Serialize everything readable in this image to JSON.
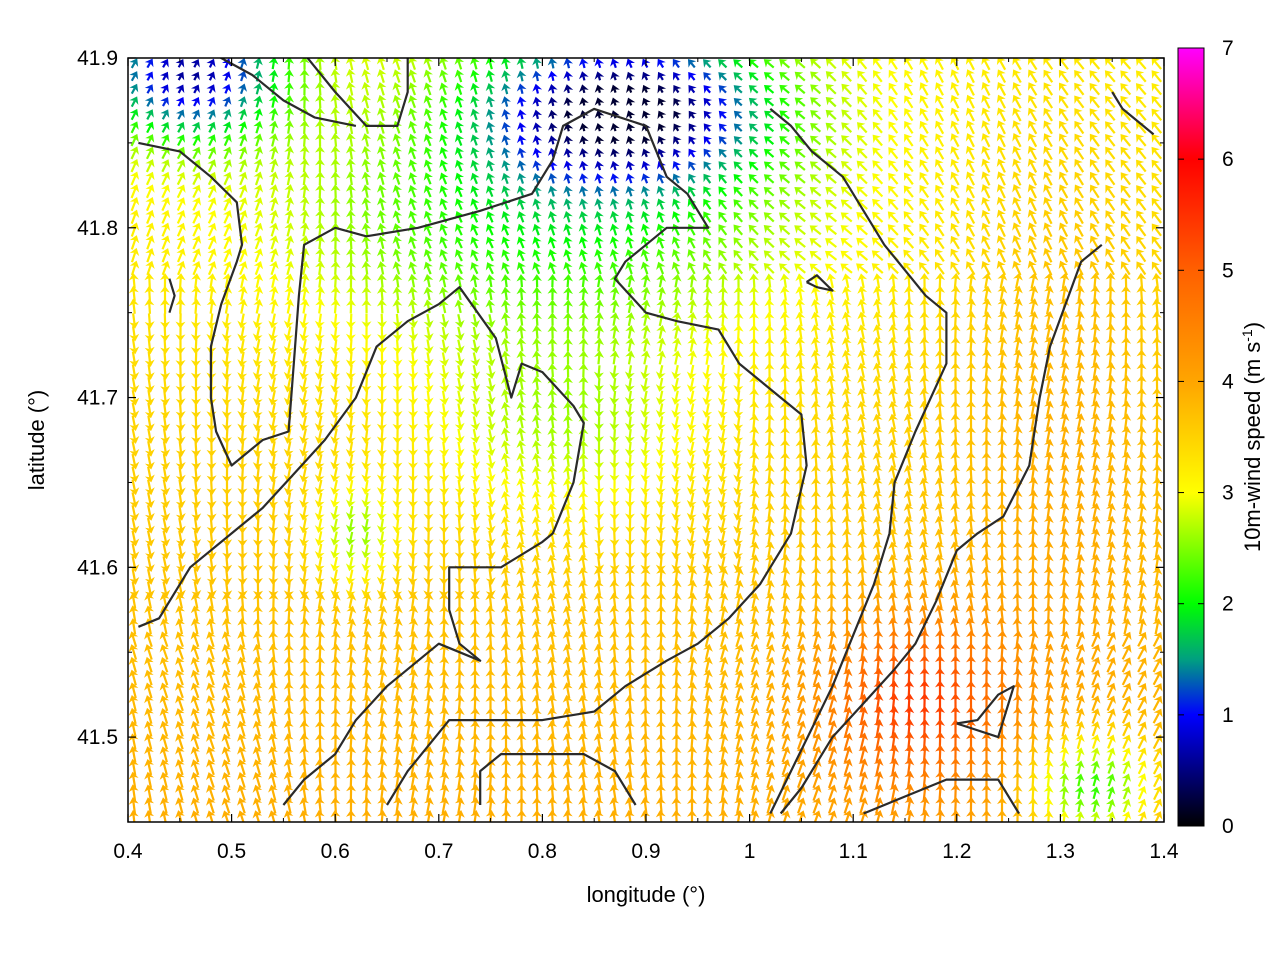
{
  "chart_data": {
    "type": "vector-field",
    "xlabel": "longitude (°)",
    "ylabel": "latitude (°)",
    "xlim": [
      0.4,
      1.4
    ],
    "ylim": [
      41.45,
      41.9
    ],
    "x_ticks": [
      "0.4",
      "0.5",
      "0.6",
      "0.7",
      "0.8",
      "0.9",
      "1",
      "1.1",
      "1.2",
      "1.3",
      "1.4"
    ],
    "y_ticks": [
      "41.5",
      "41.6",
      "41.7",
      "41.8",
      "41.9"
    ],
    "colorbar": {
      "label": "10m-wind speed (m s",
      "label_sup": "-1",
      "label_end": ")",
      "range": [
        0,
        7
      ],
      "ticks": [
        "0",
        "1",
        "2",
        "3",
        "4",
        "5",
        "6",
        "7"
      ],
      "stops": [
        {
          "v": 0,
          "color": "#000000"
        },
        {
          "v": 1,
          "color": "#0000ff"
        },
        {
          "v": 1.5,
          "color": "#00a080"
        },
        {
          "v": 2,
          "color": "#00ff00"
        },
        {
          "v": 3,
          "color": "#ffff00"
        },
        {
          "v": 4,
          "color": "#ffa500"
        },
        {
          "v": 5,
          "color": "#ff6000"
        },
        {
          "v": 6,
          "color": "#ff0000"
        },
        {
          "v": 7,
          "color": "#ff00ff"
        }
      ]
    },
    "grid": false,
    "contours": [
      [
        [
          0.41,
          41.85
        ],
        [
          0.45,
          41.845
        ],
        [
          0.48,
          41.83
        ],
        [
          0.505,
          41.815
        ],
        [
          0.51,
          41.79
        ],
        [
          0.505,
          41.78
        ],
        [
          0.49,
          41.755
        ],
        [
          0.48,
          41.73
        ],
        [
          0.48,
          41.7
        ],
        [
          0.485,
          41.68
        ],
        [
          0.5,
          41.66
        ],
        [
          0.53,
          41.675
        ],
        [
          0.555,
          41.68
        ],
        [
          0.56,
          41.72
        ],
        [
          0.565,
          41.76
        ],
        [
          0.57,
          41.79
        ],
        [
          0.6,
          41.8
        ],
        [
          0.63,
          41.795
        ],
        [
          0.68,
          41.8
        ],
        [
          0.74,
          41.81
        ],
        [
          0.79,
          41.82
        ],
        [
          0.81,
          41.84
        ],
        [
          0.82,
          41.86
        ],
        [
          0.85,
          41.87
        ],
        [
          0.9,
          41.86
        ],
        [
          0.92,
          41.83
        ],
        [
          0.94,
          41.82
        ],
        [
          0.96,
          41.8
        ],
        [
          0.92,
          41.8
        ],
        [
          0.9,
          41.79
        ],
        [
          0.88,
          41.78
        ],
        [
          0.87,
          41.77
        ],
        [
          0.9,
          41.75
        ],
        [
          0.93,
          41.745
        ],
        [
          0.97,
          41.74
        ],
        [
          0.99,
          41.72
        ],
        [
          1.03,
          41.7
        ],
        [
          1.05,
          41.69
        ],
        [
          1.055,
          41.66
        ],
        [
          1.04,
          41.62
        ],
        [
          1.01,
          41.59
        ],
        [
          0.98,
          41.57
        ],
        [
          0.95,
          41.555
        ],
        [
          0.92,
          41.545
        ],
        [
          0.88,
          41.53
        ],
        [
          0.85,
          41.515
        ],
        [
          0.8,
          41.51
        ],
        [
          0.75,
          41.51
        ],
        [
          0.71,
          41.51
        ],
        [
          0.67,
          41.48
        ],
        [
          0.65,
          41.46
        ]
      ],
      [
        [
          0.41,
          41.565
        ],
        [
          0.43,
          41.57
        ],
        [
          0.46,
          41.6
        ],
        [
          0.5,
          41.62
        ],
        [
          0.53,
          41.635
        ],
        [
          0.56,
          41.655
        ],
        [
          0.59,
          41.675
        ],
        [
          0.62,
          41.7
        ],
        [
          0.64,
          41.73
        ],
        [
          0.67,
          41.745
        ],
        [
          0.7,
          41.755
        ],
        [
          0.72,
          41.765
        ],
        [
          0.755,
          41.735
        ],
        [
          0.77,
          41.7
        ],
        [
          0.78,
          41.72
        ],
        [
          0.8,
          41.715
        ],
        [
          0.83,
          41.695
        ],
        [
          0.84,
          41.685
        ],
        [
          0.83,
          41.65
        ],
        [
          0.81,
          41.62
        ],
        [
          0.8,
          41.615
        ],
        [
          0.76,
          41.6
        ],
        [
          0.71,
          41.6
        ],
        [
          0.71,
          41.575
        ],
        [
          0.72,
          41.555
        ],
        [
          0.74,
          41.545
        ],
        [
          0.7,
          41.555
        ],
        [
          0.68,
          41.545
        ],
        [
          0.65,
          41.53
        ],
        [
          0.62,
          41.51
        ],
        [
          0.6,
          41.49
        ],
        [
          0.57,
          41.475
        ],
        [
          0.55,
          41.46
        ]
      ],
      [
        [
          0.74,
          41.46
        ],
        [
          0.74,
          41.48
        ],
        [
          0.76,
          41.49
        ],
        [
          0.84,
          41.49
        ],
        [
          0.87,
          41.48
        ],
        [
          0.89,
          41.46
        ]
      ],
      [
        [
          0.56,
          41.91
        ],
        [
          0.6,
          41.88
        ],
        [
          0.63,
          41.86
        ],
        [
          0.66,
          41.86
        ],
        [
          0.67,
          41.88
        ],
        [
          0.67,
          41.91
        ]
      ],
      [
        [
          0.46,
          41.93
        ],
        [
          0.47,
          41.91
        ],
        [
          0.49,
          41.9
        ],
        [
          0.52,
          41.89
        ],
        [
          0.55,
          41.875
        ],
        [
          0.58,
          41.865
        ],
        [
          0.62,
          41.86
        ]
      ],
      [
        [
          1.02,
          41.87
        ],
        [
          1.04,
          41.86
        ],
        [
          1.06,
          41.845
        ],
        [
          1.09,
          41.83
        ],
        [
          1.13,
          41.79
        ],
        [
          1.17,
          41.76
        ],
        [
          1.19,
          41.75
        ],
        [
          1.19,
          41.72
        ],
        [
          1.16,
          41.68
        ],
        [
          1.14,
          41.65
        ],
        [
          1.135,
          41.62
        ],
        [
          1.12,
          41.59
        ],
        [
          1.1,
          41.56
        ],
        [
          1.08,
          41.53
        ],
        [
          1.06,
          41.505
        ],
        [
          1.04,
          41.48
        ],
        [
          1.02,
          41.455
        ]
      ],
      [
        [
          1.34,
          41.79
        ],
        [
          1.32,
          41.78
        ],
        [
          1.29,
          41.73
        ],
        [
          1.28,
          41.7
        ],
        [
          1.27,
          41.66
        ],
        [
          1.245,
          41.63
        ],
        [
          1.22,
          41.62
        ],
        [
          1.2,
          41.61
        ],
        [
          1.18,
          41.58
        ],
        [
          1.16,
          41.555
        ],
        [
          1.14,
          41.54
        ],
        [
          1.11,
          41.52
        ],
        [
          1.08,
          41.5
        ],
        [
          1.05,
          41.47
        ],
        [
          1.03,
          41.455
        ]
      ],
      [
        [
          1.11,
          41.455
        ],
        [
          1.15,
          41.465
        ],
        [
          1.19,
          41.475
        ],
        [
          1.24,
          41.475
        ],
        [
          1.26,
          41.455
        ]
      ],
      [
        [
          1.2,
          41.508
        ],
        [
          1.24,
          41.5
        ],
        [
          1.255,
          41.53
        ],
        [
          1.24,
          41.525
        ],
        [
          1.22,
          41.51
        ],
        [
          1.2,
          41.508
        ]
      ],
      [
        [
          1.055,
          41.768
        ],
        [
          1.065,
          41.765
        ],
        [
          1.08,
          41.763
        ],
        [
          1.065,
          41.772
        ],
        [
          1.055,
          41.768
        ]
      ],
      [
        [
          1.35,
          41.88
        ],
        [
          1.36,
          41.87
        ],
        [
          1.38,
          41.86
        ],
        [
          1.39,
          41.855
        ]
      ],
      [
        [
          0.44,
          41.77
        ],
        [
          0.445,
          41.76
        ],
        [
          0.44,
          41.75
        ]
      ]
    ]
  }
}
